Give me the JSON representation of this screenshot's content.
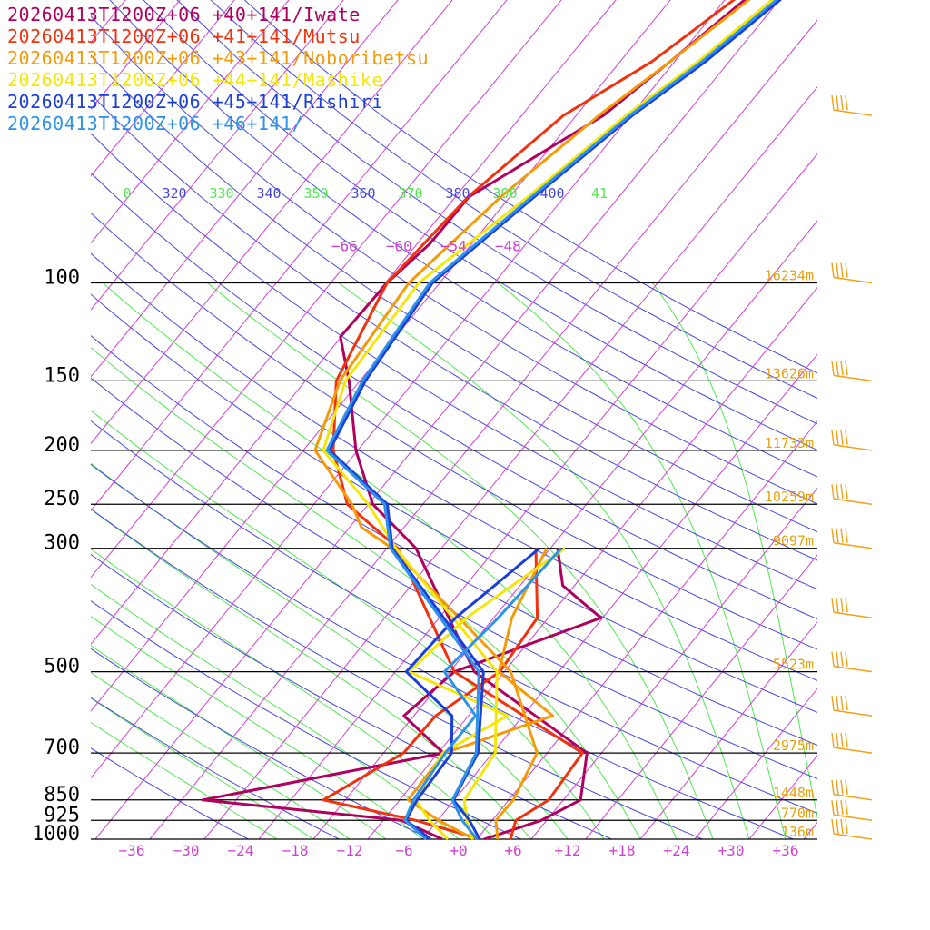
{
  "legend": [
    {
      "label": "20260413T1200Z+06 +40+141/Iwate",
      "color": "#b0005e"
    },
    {
      "label": "20260413T1200Z+06 +41+141/Mutsu",
      "color": "#f0320f"
    },
    {
      "label": "20260413T1200Z+06 +43+141/Noboribetsu",
      "color": "#f59b0a"
    },
    {
      "label": "20260413T1200Z+06 +44+141/Mashike",
      "color": "#f5e60a"
    },
    {
      "label": "20260413T1200Z+06 +45+141/Rishiri",
      "color": "#1b3fd8"
    },
    {
      "label": "20260413T1200Z+06 +46+141/",
      "color": "#2d92e8"
    }
  ],
  "chart_data": {
    "type": "line",
    "chart_kind": "skew-T log-p sounding",
    "pressure_levels": [
      100,
      150,
      200,
      250,
      300,
      500,
      700,
      850,
      925,
      1000
    ],
    "pressure_labels": [
      "100",
      "150",
      "200",
      "250",
      "300",
      "500",
      "700",
      "850",
      "925",
      "1000"
    ],
    "temp_ticks": [
      -36,
      -30,
      -24,
      -18,
      -12,
      -6,
      0,
      6,
      12,
      18,
      24,
      30,
      36
    ],
    "temp_tick_labels": [
      "−36",
      "−30",
      "−24",
      "−18",
      "−12",
      "−6",
      "+0",
      "+6",
      "+12",
      "+18",
      "+24",
      "+30",
      "+36"
    ],
    "top_isotherm_labels": [
      "−66",
      "−60",
      "−54",
      "−48"
    ],
    "theta_labels": [
      {
        "text": "0",
        "color": "#4fe84f"
      },
      {
        "text": "320",
        "color": "#4646e0"
      },
      {
        "text": "330",
        "color": "#4fe84f"
      },
      {
        "text": "340",
        "color": "#4646e0"
      },
      {
        "text": "350",
        "color": "#4fe84f"
      },
      {
        "text": "360",
        "color": "#4646e0"
      },
      {
        "text": "370",
        "color": "#4fe84f"
      },
      {
        "text": "380",
        "color": "#4646e0"
      },
      {
        "text": "390",
        "color": "#4fe84f"
      },
      {
        "text": "400",
        "color": "#4646e0"
      },
      {
        "text": "41",
        "color": "#4fe84f"
      }
    ],
    "height_labels": [
      {
        "p": 100,
        "text": "16234m"
      },
      {
        "p": 150,
        "text": "13626m"
      },
      {
        "p": 200,
        "text": "11733m"
      },
      {
        "p": 250,
        "text": "10259m"
      },
      {
        "p": 300,
        "text": "9097m"
      },
      {
        "p": 500,
        "text": "5523m"
      },
      {
        "p": 700,
        "text": "2975m"
      },
      {
        "p": 850,
        "text": "1448m"
      },
      {
        "p": 925,
        "text": "770m"
      },
      {
        "p": 1000,
        "text": "136m"
      }
    ],
    "xlim": [
      -40,
      40
    ],
    "ylim": [
      1000,
      100
    ],
    "series": [
      {
        "name": "20260413T1200Z+06 +40+141/Iwate",
        "color": "#b0005e",
        "temperature": [
          [
            1000,
            2.8
          ],
          [
            925,
            7.4
          ],
          [
            850,
            9.9
          ],
          [
            700,
            6.4
          ],
          [
            500,
            -13.3
          ],
          [
            300,
            -30.8
          ],
          [
            250,
            -39.5
          ],
          [
            200,
            -46.2
          ],
          [
            150,
            -53.2
          ],
          [
            125,
            -58.1
          ],
          [
            100,
            -57.8
          ],
          [
            85,
            -56.6
          ],
          [
            70,
            -56.5
          ],
          [
            50,
            -49.0
          ],
          [
            40,
            -46.5
          ],
          [
            30,
            -43.5
          ]
        ],
        "dewpoint": [
          [
            1000,
            -1.8
          ],
          [
            925,
            -8.0
          ],
          [
            850,
            -31.7
          ],
          [
            700,
            -9.4
          ],
          [
            600,
            -17.1
          ],
          [
            500,
            -15.5
          ],
          [
            400,
            -4.2
          ],
          [
            350,
            -11.3
          ],
          [
            300,
            -15.2
          ]
        ]
      },
      {
        "name": "20260413T1200Z+06 +41+141/Mutsu",
        "color": "#f0320f",
        "temperature": [
          [
            1000,
            5.7
          ],
          [
            925,
            4.6
          ],
          [
            850,
            6.4
          ],
          [
            700,
            5.9
          ],
          [
            500,
            -15.5
          ],
          [
            300,
            -32.8
          ],
          [
            250,
            -42.3
          ],
          [
            200,
            -48.7
          ],
          [
            150,
            -54.6
          ],
          [
            100,
            -57.8
          ],
          [
            70,
            -56.6
          ],
          [
            50,
            -53.4
          ],
          [
            40,
            -48.5
          ],
          [
            30,
            -44.6
          ]
        ],
        "dewpoint": [
          [
            1000,
            2.4
          ],
          [
            925,
            -6.4
          ],
          [
            850,
            -18.4
          ],
          [
            700,
            -13.8
          ],
          [
            600,
            -13.6
          ],
          [
            500,
            -10.5
          ],
          [
            400,
            -11.2
          ],
          [
            300,
            -17.6
          ]
        ]
      },
      {
        "name": "20260413T1200Z+06 +43+141/Noboribetsu",
        "color": "#f59b0a",
        "temperature": [
          [
            1000,
            4.3
          ],
          [
            925,
            2.4
          ],
          [
            850,
            2.5
          ],
          [
            700,
            0.9
          ],
          [
            500,
            -9.3
          ],
          [
            300,
            -33.4
          ],
          [
            275,
            -38.7
          ],
          [
            250,
            -41.8
          ],
          [
            200,
            -50.7
          ],
          [
            150,
            -54.2
          ],
          [
            100,
            -55.4
          ],
          [
            70,
            -53.0
          ],
          [
            50,
            -49.5
          ],
          [
            40,
            -46.5
          ],
          [
            30,
            -43.0
          ]
        ],
        "dewpoint": [
          [
            1000,
            1.7
          ],
          [
            925,
            -3.9
          ],
          [
            850,
            -9.1
          ],
          [
            700,
            -9.3
          ],
          [
            600,
            -0.7
          ],
          [
            500,
            -10.6
          ],
          [
            400,
            -14.0
          ],
          [
            300,
            -16.4
          ]
        ]
      },
      {
        "name": "20260413T1200Z+06 +44+141/Mashike",
        "color": "#f5e60a",
        "temperature": [
          [
            1000,
            1.5
          ],
          [
            925,
            -0.8
          ],
          [
            850,
            -2.9
          ],
          [
            700,
            -3.7
          ],
          [
            500,
            -10.8
          ],
          [
            300,
            -33.0
          ],
          [
            250,
            -40.0
          ],
          [
            200,
            -49.8
          ],
          [
            150,
            -53.6
          ],
          [
            100,
            -54.3
          ],
          [
            70,
            -50.0
          ],
          [
            50,
            -46.5
          ],
          [
            40,
            -43.4
          ],
          [
            30,
            -40.5
          ]
        ],
        "dewpoint": [
          [
            1000,
            -1.2
          ],
          [
            925,
            -4.9
          ],
          [
            850,
            -8.2
          ],
          [
            700,
            -9.5
          ],
          [
            600,
            -5.7
          ],
          [
            500,
            -20.5
          ],
          [
            400,
            -19.0
          ],
          [
            300,
            -14.4
          ]
        ]
      },
      {
        "name": "20260413T1200Z+06 +45+141/Rishiri",
        "color": "#1b3fd8",
        "temperature": [
          [
            1000,
            2.3
          ],
          [
            925,
            -0.5
          ],
          [
            850,
            -4.1
          ],
          [
            700,
            -5.6
          ],
          [
            500,
            -12.3
          ],
          [
            300,
            -33.4
          ],
          [
            250,
            -37.9
          ],
          [
            200,
            -49.1
          ],
          [
            150,
            -51.4
          ],
          [
            100,
            -52.8
          ],
          [
            70,
            -49.3
          ],
          [
            50,
            -45.8
          ],
          [
            40,
            -42.6
          ],
          [
            30,
            -39.6
          ]
        ],
        "dewpoint": [
          [
            1000,
            -3.1
          ],
          [
            925,
            -7.5
          ],
          [
            850,
            -8.1
          ],
          [
            700,
            -8.5
          ],
          [
            600,
            -11.8
          ],
          [
            500,
            -20.8
          ],
          [
            400,
            -20.2
          ],
          [
            300,
            -17.2
          ]
        ]
      },
      {
        "name": "20260413T1200Z+06 +46+141/",
        "color": "#2d92e8",
        "temperature": [
          [
            1000,
            2.0
          ],
          [
            925,
            -1.3
          ],
          [
            850,
            -4.2
          ],
          [
            700,
            -5.8
          ],
          [
            500,
            -12.8
          ],
          [
            300,
            -33.6
          ],
          [
            250,
            -38.2
          ],
          [
            200,
            -49.4
          ],
          [
            150,
            -51.7
          ],
          [
            100,
            -53.1
          ],
          [
            70,
            -49.6
          ],
          [
            50,
            -46.1
          ],
          [
            40,
            -43.0
          ],
          [
            30,
            -40.0
          ]
        ],
        "dewpoint": [
          [
            1000,
            -3.6
          ],
          [
            925,
            -7.6
          ],
          [
            850,
            -8.5
          ],
          [
            700,
            -9.2
          ],
          [
            600,
            -9.2
          ],
          [
            500,
            -16.6
          ],
          [
            400,
            -15.5
          ],
          [
            300,
            -14.8
          ]
        ]
      }
    ],
    "wind_barbs_pressure": [
      30,
      50,
      100,
      150,
      200,
      250,
      300,
      400,
      500,
      600,
      700,
      850,
      925,
      1000
    ],
    "colors": {
      "isobar": "#000000",
      "isotherm": "#d13fd1",
      "dry_adiabat": "#4646e0",
      "moist_adiabat": "#4fe84f",
      "height_label": "#e7a10f",
      "wind_barb": "#f5a01a"
    }
  }
}
